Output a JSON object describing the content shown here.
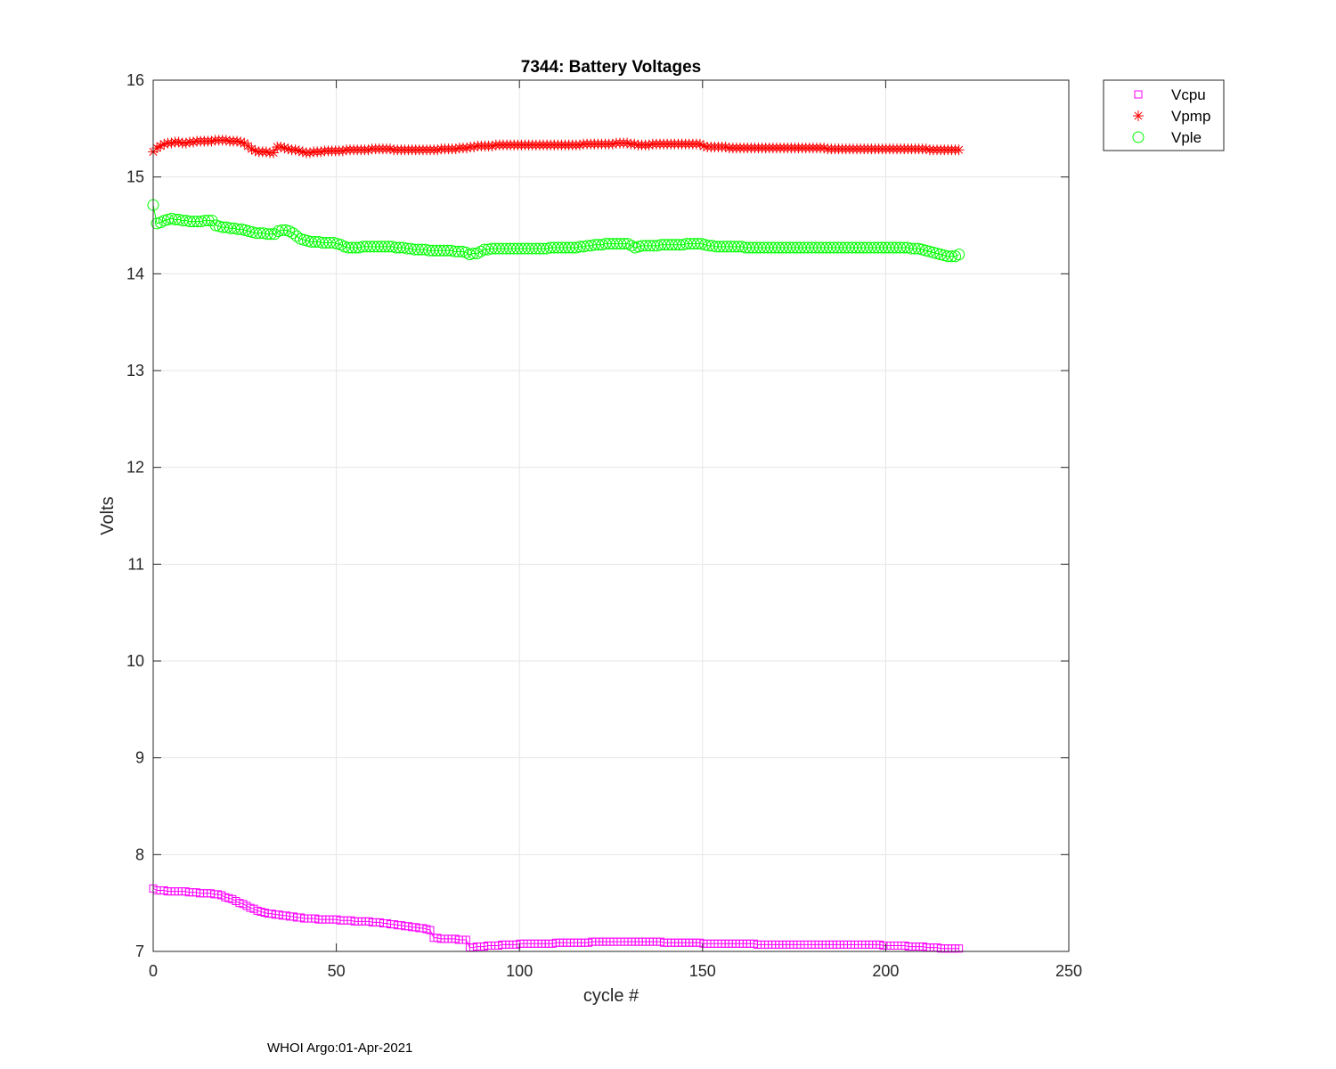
{
  "chart_data": {
    "type": "scatter",
    "title": "7344: Battery Voltages",
    "xlabel": "cycle #",
    "ylabel": "Volts",
    "xlim": [
      0,
      250
    ],
    "ylim": [
      7,
      16
    ],
    "xticks": [
      0,
      50,
      100,
      150,
      200,
      250
    ],
    "yticks": [
      7,
      8,
      9,
      10,
      11,
      12,
      13,
      14,
      15,
      16
    ],
    "grid": true,
    "legend_position": "outside-top-right",
    "series": [
      {
        "name": "Vcpu",
        "color": "#ff00ff",
        "marker": "square",
        "x_start": 0,
        "x_end": 220,
        "values": [
          7.65,
          7.63,
          7.63,
          7.63,
          7.62,
          7.62,
          7.62,
          7.62,
          7.62,
          7.62,
          7.61,
          7.61,
          7.61,
          7.6,
          7.6,
          7.6,
          7.6,
          7.59,
          7.59,
          7.58,
          7.56,
          7.55,
          7.54,
          7.52,
          7.5,
          7.49,
          7.47,
          7.45,
          7.44,
          7.42,
          7.41,
          7.4,
          7.39,
          7.39,
          7.38,
          7.38,
          7.37,
          7.37,
          7.36,
          7.36,
          7.35,
          7.35,
          7.34,
          7.34,
          7.34,
          7.34,
          7.33,
          7.33,
          7.33,
          7.33,
          7.33,
          7.33,
          7.32,
          7.32,
          7.32,
          7.32,
          7.31,
          7.31,
          7.31,
          7.31,
          7.31,
          7.3,
          7.3,
          7.3,
          7.29,
          7.29,
          7.28,
          7.28,
          7.27,
          7.27,
          7.26,
          7.26,
          7.25,
          7.25,
          7.24,
          7.24,
          7.23,
          7.22,
          7.14,
          7.14,
          7.13,
          7.13,
          7.13,
          7.13,
          7.13,
          7.12,
          7.12,
          7.12,
          7.04,
          7.04,
          7.05,
          7.05,
          7.05,
          7.06,
          7.06,
          7.06,
          7.06,
          7.07,
          7.07,
          7.07,
          7.07,
          7.07,
          7.08,
          7.08,
          7.08,
          7.08,
          7.08,
          7.08,
          7.08,
          7.08,
          7.08,
          7.08,
          7.09,
          7.09,
          7.09,
          7.09,
          7.09,
          7.09,
          7.09,
          7.09,
          7.09,
          7.09,
          7.1,
          7.1,
          7.1,
          7.1,
          7.1,
          7.1,
          7.1,
          7.1,
          7.1,
          7.1,
          7.1,
          7.1,
          7.1,
          7.1,
          7.1,
          7.1,
          7.1,
          7.1,
          7.1,
          7.1,
          7.09,
          7.09,
          7.09,
          7.09,
          7.09,
          7.09,
          7.09,
          7.09,
          7.09,
          7.09,
          7.09,
          7.08,
          7.08,
          7.08,
          7.08,
          7.08,
          7.08,
          7.08,
          7.08,
          7.08,
          7.08,
          7.08,
          7.08,
          7.08,
          7.08,
          7.08,
          7.07,
          7.07,
          7.07,
          7.07,
          7.07,
          7.07,
          7.07,
          7.07,
          7.07,
          7.07,
          7.07,
          7.07,
          7.07,
          7.07,
          7.07,
          7.07,
          7.07,
          7.07,
          7.07,
          7.07,
          7.07,
          7.07,
          7.07,
          7.07,
          7.07,
          7.07,
          7.07,
          7.07,
          7.07,
          7.07,
          7.07,
          7.07,
          7.07,
          7.07,
          7.07,
          7.06,
          7.06,
          7.06,
          7.06,
          7.06,
          7.06,
          7.06,
          7.05,
          7.05,
          7.05,
          7.05,
          7.05,
          7.04,
          7.04,
          7.04,
          7.04,
          7.03,
          7.03,
          7.03,
          7.03,
          7.03,
          7.03
        ]
      },
      {
        "name": "Vpmp",
        "color": "#ff0000",
        "marker": "asterisk",
        "x_start": 0,
        "x_end": 220,
        "values": [
          15.26,
          15.3,
          15.32,
          15.34,
          15.35,
          15.35,
          15.36,
          15.36,
          15.35,
          15.35,
          15.36,
          15.36,
          15.37,
          15.37,
          15.37,
          15.37,
          15.37,
          15.38,
          15.38,
          15.38,
          15.38,
          15.37,
          15.37,
          15.37,
          15.36,
          15.35,
          15.32,
          15.29,
          15.27,
          15.26,
          15.26,
          15.26,
          15.25,
          15.25,
          15.31,
          15.31,
          15.3,
          15.29,
          15.28,
          15.28,
          15.27,
          15.26,
          15.25,
          15.25,
          15.26,
          15.26,
          15.26,
          15.27,
          15.27,
          15.27,
          15.27,
          15.27,
          15.27,
          15.28,
          15.28,
          15.28,
          15.28,
          15.28,
          15.28,
          15.28,
          15.29,
          15.29,
          15.29,
          15.29,
          15.29,
          15.29,
          15.28,
          15.28,
          15.28,
          15.28,
          15.28,
          15.28,
          15.28,
          15.28,
          15.28,
          15.28,
          15.28,
          15.28,
          15.28,
          15.29,
          15.29,
          15.29,
          15.29,
          15.29,
          15.3,
          15.3,
          15.3,
          15.31,
          15.31,
          15.32,
          15.32,
          15.32,
          15.32,
          15.32,
          15.33,
          15.33,
          15.33,
          15.33,
          15.33,
          15.33,
          15.33,
          15.33,
          15.33,
          15.33,
          15.33,
          15.33,
          15.33,
          15.33,
          15.33,
          15.33,
          15.33,
          15.33,
          15.33,
          15.33,
          15.33,
          15.33,
          15.33,
          15.33,
          15.34,
          15.34,
          15.34,
          15.34,
          15.34,
          15.34,
          15.34,
          15.34,
          15.34,
          15.35,
          15.35,
          15.35,
          15.35,
          15.34,
          15.34,
          15.33,
          15.33,
          15.33,
          15.33,
          15.34,
          15.34,
          15.34,
          15.34,
          15.34,
          15.34,
          15.34,
          15.34,
          15.34,
          15.34,
          15.34,
          15.34,
          15.34,
          15.34,
          15.32,
          15.31,
          15.31,
          15.31,
          15.31,
          15.31,
          15.31,
          15.3,
          15.3,
          15.3,
          15.3,
          15.3,
          15.3,
          15.3,
          15.3,
          15.3,
          15.3,
          15.3,
          15.3,
          15.3,
          15.3,
          15.3,
          15.3,
          15.3,
          15.3,
          15.3,
          15.3,
          15.3,
          15.3,
          15.3,
          15.3,
          15.3,
          15.3,
          15.3,
          15.29,
          15.29,
          15.29,
          15.29,
          15.29,
          15.29,
          15.29,
          15.29,
          15.29,
          15.29,
          15.29,
          15.29,
          15.29,
          15.29,
          15.29,
          15.29,
          15.29,
          15.29,
          15.29,
          15.29,
          15.29,
          15.29,
          15.29,
          15.29,
          15.29,
          15.29,
          15.29,
          15.29,
          15.28,
          15.28,
          15.28,
          15.28,
          15.28,
          15.28,
          15.28,
          15.28,
          15.28
        ]
      },
      {
        "name": "Vple",
        "color": "#00ff00",
        "marker": "circle",
        "x_start": 0,
        "x_end": 220,
        "values": [
          14.71,
          14.52,
          14.53,
          14.55,
          14.56,
          14.57,
          14.56,
          14.56,
          14.55,
          14.55,
          14.54,
          14.54,
          14.54,
          14.54,
          14.55,
          14.55,
          14.55,
          14.5,
          14.49,
          14.48,
          14.48,
          14.47,
          14.47,
          14.46,
          14.46,
          14.45,
          14.44,
          14.43,
          14.42,
          14.42,
          14.42,
          14.41,
          14.41,
          14.41,
          14.44,
          14.45,
          14.45,
          14.44,
          14.42,
          14.39,
          14.36,
          14.35,
          14.34,
          14.33,
          14.33,
          14.33,
          14.32,
          14.32,
          14.32,
          14.32,
          14.31,
          14.3,
          14.28,
          14.27,
          14.27,
          14.27,
          14.27,
          14.28,
          14.28,
          14.28,
          14.28,
          14.28,
          14.28,
          14.28,
          14.28,
          14.28,
          14.27,
          14.27,
          14.27,
          14.26,
          14.26,
          14.25,
          14.25,
          14.25,
          14.25,
          14.24,
          14.24,
          14.24,
          14.24,
          14.24,
          14.24,
          14.24,
          14.23,
          14.23,
          14.23,
          14.22,
          14.2,
          14.21,
          14.21,
          14.23,
          14.25,
          14.25,
          14.26,
          14.26,
          14.26,
          14.26,
          14.26,
          14.26,
          14.26,
          14.26,
          14.26,
          14.26,
          14.26,
          14.26,
          14.26,
          14.26,
          14.26,
          14.26,
          14.27,
          14.27,
          14.27,
          14.27,
          14.27,
          14.27,
          14.27,
          14.27,
          14.28,
          14.28,
          14.29,
          14.29,
          14.3,
          14.3,
          14.3,
          14.31,
          14.31,
          14.31,
          14.31,
          14.31,
          14.31,
          14.31,
          14.29,
          14.27,
          14.28,
          14.29,
          14.29,
          14.29,
          14.29,
          14.29,
          14.3,
          14.3,
          14.3,
          14.3,
          14.3,
          14.3,
          14.3,
          14.31,
          14.31,
          14.31,
          14.31,
          14.31,
          14.3,
          14.29,
          14.29,
          14.28,
          14.28,
          14.28,
          14.28,
          14.28,
          14.28,
          14.28,
          14.28,
          14.27,
          14.27,
          14.27,
          14.27,
          14.27,
          14.27,
          14.27,
          14.27,
          14.27,
          14.27,
          14.27,
          14.27,
          14.27,
          14.27,
          14.27,
          14.27,
          14.27,
          14.27,
          14.27,
          14.27,
          14.27,
          14.27,
          14.27,
          14.27,
          14.27,
          14.27,
          14.27,
          14.27,
          14.27,
          14.27,
          14.27,
          14.27,
          14.27,
          14.27,
          14.27,
          14.27,
          14.27,
          14.27,
          14.27,
          14.27,
          14.27,
          14.27,
          14.27,
          14.27,
          14.27,
          14.26,
          14.26,
          14.26,
          14.25,
          14.24,
          14.23,
          14.22,
          14.21,
          14.2,
          14.19,
          14.18,
          14.18,
          14.18,
          14.2
        ]
      }
    ]
  },
  "footer": {
    "text": "WHOI Argo:01-Apr-2021"
  }
}
